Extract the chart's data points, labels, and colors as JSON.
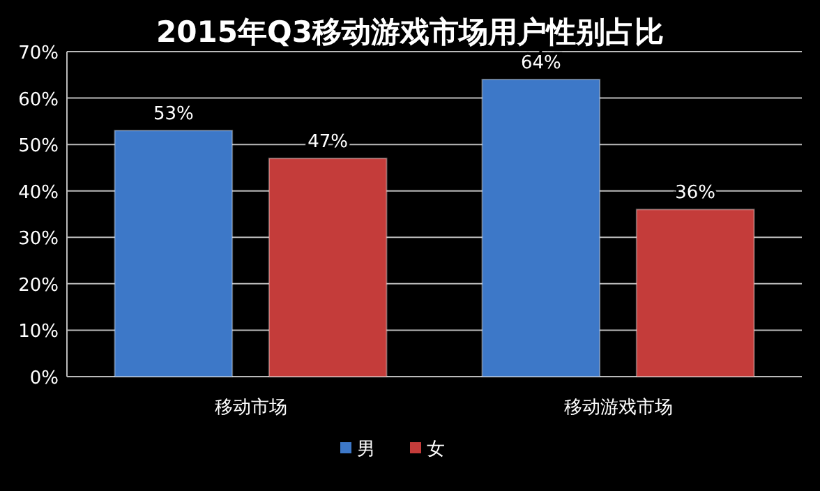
{
  "chart_data": {
    "type": "bar",
    "title": "2015年Q3移动游戏市场用户性别占比",
    "categories": [
      "移动市场",
      "移动游戏市场"
    ],
    "series": [
      {
        "name": "男",
        "color": "#3d78c8",
        "values": [
          53,
          64
        ],
        "value_labels": [
          "53%",
          "64%"
        ]
      },
      {
        "name": "女",
        "color": "#c43c3a",
        "values": [
          47,
          36
        ],
        "value_labels": [
          "47%",
          "36%"
        ]
      }
    ],
    "ylim": [
      0,
      70
    ],
    "yticks": [
      {
        "value": 0,
        "label": "0%"
      },
      {
        "value": 10,
        "label": "10%"
      },
      {
        "value": 20,
        "label": "20%"
      },
      {
        "value": 30,
        "label": "30%"
      },
      {
        "value": 40,
        "label": "40%"
      },
      {
        "value": 50,
        "label": "50%"
      },
      {
        "value": 60,
        "label": "60%"
      },
      {
        "value": 70,
        "label": "70%"
      }
    ],
    "grid": "y",
    "legend": "bottom"
  }
}
